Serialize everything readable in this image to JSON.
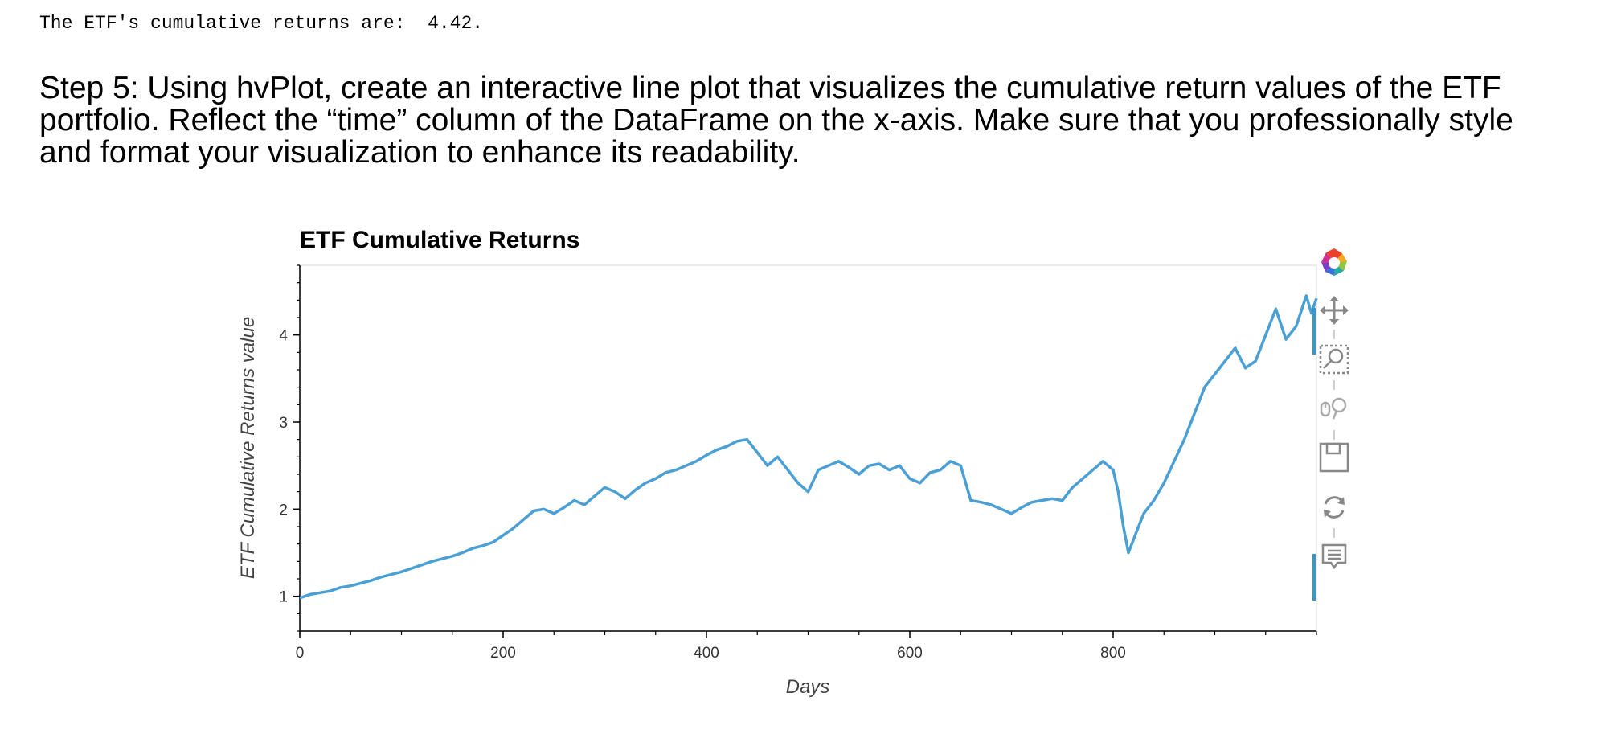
{
  "output": {
    "text": "The ETF's cumulative returns are:  4.42."
  },
  "heading": {
    "text": "Step 5: Using hvPlot, create an interactive line plot that visualizes the cumulative return values of the ETF portfolio. Reflect the “time” column of the DataFrame on the x-axis. Make sure that you professionally style and format your visualization to enhance its readability."
  },
  "chart_data": {
    "type": "line",
    "title": "ETF Cumulative Returns",
    "xlabel": "Days",
    "ylabel": "ETF Cumulative Returns value",
    "xlim": [
      0,
      1000
    ],
    "ylim": [
      0.6,
      4.8
    ],
    "xticks": [
      0,
      200,
      400,
      600,
      800
    ],
    "yticks": [
      1,
      2,
      3,
      4
    ],
    "grid": false,
    "line_color": "#4a9fd5",
    "series": [
      {
        "x": [
          0,
          10,
          20,
          30,
          40,
          50,
          60,
          70,
          80,
          90,
          100,
          110,
          120,
          130,
          140,
          150,
          160,
          170,
          180,
          190,
          200,
          210,
          220,
          230,
          240,
          250,
          260,
          270,
          280,
          290,
          300,
          310,
          320,
          330,
          340,
          350,
          360,
          370,
          380,
          390,
          400,
          410,
          420,
          430,
          440,
          450,
          460,
          470,
          480,
          490,
          500,
          510,
          520,
          530,
          540,
          550,
          560,
          570,
          580,
          590,
          600,
          610,
          620,
          630,
          640,
          650,
          660,
          670,
          680,
          690,
          700,
          710,
          720,
          730,
          740,
          750,
          760,
          770,
          780,
          790,
          800,
          805,
          810,
          815,
          820,
          825,
          830,
          840,
          850,
          860,
          870,
          880,
          890,
          900,
          910,
          920,
          930,
          940,
          950,
          960,
          970,
          980,
          990,
          995,
          1000
        ],
        "y": [
          0.98,
          1.02,
          1.04,
          1.06,
          1.1,
          1.12,
          1.15,
          1.18,
          1.22,
          1.25,
          1.28,
          1.32,
          1.36,
          1.4,
          1.43,
          1.46,
          1.5,
          1.55,
          1.58,
          1.62,
          1.7,
          1.78,
          1.88,
          1.98,
          2.0,
          1.95,
          2.02,
          2.1,
          2.05,
          2.15,
          2.25,
          2.2,
          2.12,
          2.22,
          2.3,
          2.35,
          2.42,
          2.45,
          2.5,
          2.55,
          2.62,
          2.68,
          2.72,
          2.78,
          2.8,
          2.65,
          2.5,
          2.6,
          2.45,
          2.3,
          2.2,
          2.45,
          2.5,
          2.55,
          2.48,
          2.4,
          2.5,
          2.52,
          2.45,
          2.5,
          2.35,
          2.3,
          2.42,
          2.45,
          2.55,
          2.5,
          2.1,
          2.08,
          2.05,
          2.0,
          1.95,
          2.02,
          2.08,
          2.1,
          2.12,
          2.1,
          2.25,
          2.35,
          2.45,
          2.55,
          2.45,
          2.2,
          1.8,
          1.5,
          1.65,
          1.8,
          1.95,
          2.1,
          2.3,
          2.55,
          2.8,
          3.1,
          3.4,
          3.55,
          3.7,
          3.85,
          3.62,
          3.7,
          4.0,
          4.3,
          3.95,
          4.1,
          4.45,
          4.25,
          4.42
        ]
      }
    ]
  },
  "toolbar": {
    "tools": [
      "bokeh-logo-icon",
      "pan-icon",
      "box-zoom-icon",
      "wheel-zoom-icon",
      "save-icon",
      "reset-icon",
      "hover-icon"
    ]
  }
}
